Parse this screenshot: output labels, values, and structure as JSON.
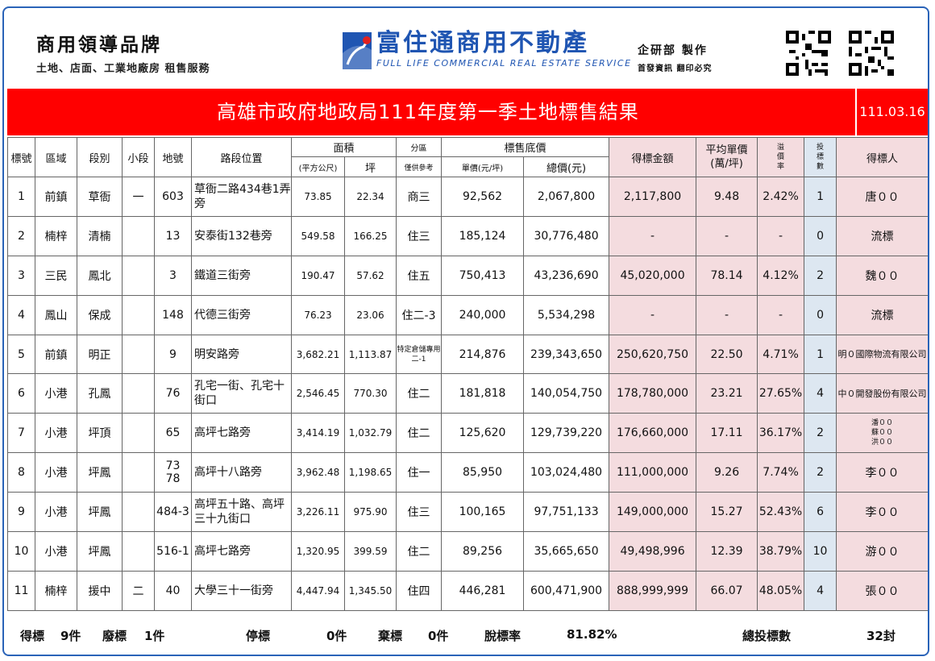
{
  "header": {
    "brand_title": "商用領導品牌",
    "brand_sub": "土地、店面、工業地廠房 租售服務",
    "company_cn": "富住通商用不動產",
    "company_en": "FULL LIFE COMMERCIAL REAL ESTATE SERVICE",
    "dept_line1": "企研部 製作",
    "dept_line2": "首發資訊 翻印必究",
    "brand_color": "#1f55b2"
  },
  "title": "高雄市政府地政局111年度第一季土地標售結果",
  "date": "111.03.16",
  "columns": {
    "no": "標號",
    "district": "區域",
    "section": "段別",
    "subsection": "小段",
    "lot": "地號",
    "road": "路段位置",
    "area": "面積",
    "area_m2": "(平方公尺)",
    "area_ping": "坪",
    "zone": "分區",
    "zone_note": "僅供參考",
    "base_price": "標售底價",
    "unit_price": "單價(元/坪)",
    "total_price": "總價(元)",
    "winning_amount": "得標金額",
    "avg_unit": "平均單價",
    "avg_unit_unit": "(萬/坪)",
    "premium_1": "溢",
    "premium_2": "價",
    "premium_3": "率",
    "bids_1": "投",
    "bids_2": "標",
    "bids_3": "數",
    "winner": "得標人"
  },
  "rows": [
    {
      "no": "1",
      "district": "前鎮",
      "section": "草衙",
      "sub": "一",
      "lot": "603",
      "road": "草衙二路434巷1弄旁",
      "m2": "73.85",
      "ping": "22.34",
      "zone": "商三",
      "unit": "92,562",
      "total": "2,067,800",
      "win": "2,117,800",
      "avg": "9.48",
      "prem": "2.42%",
      "bids": "1",
      "winner": "唐００"
    },
    {
      "no": "2",
      "district": "楠梓",
      "section": "清楠",
      "sub": "",
      "lot": "13",
      "road": "安泰街132巷旁",
      "m2": "549.58",
      "ping": "166.25",
      "zone": "住三",
      "unit": "185,124",
      "total": "30,776,480",
      "win": "-",
      "avg": "-",
      "prem": "-",
      "bids": "0",
      "winner": "流標"
    },
    {
      "no": "3",
      "district": "三民",
      "section": "鳳北",
      "sub": "",
      "lot": "3",
      "road": "鐵道三街旁",
      "m2": "190.47",
      "ping": "57.62",
      "zone": "住五",
      "unit": "750,413",
      "total": "43,236,690",
      "win": "45,020,000",
      "avg": "78.14",
      "prem": "4.12%",
      "bids": "2",
      "winner": "魏００"
    },
    {
      "no": "4",
      "district": "鳳山",
      "section": "保成",
      "sub": "",
      "lot": "148",
      "road": "代德三街旁",
      "m2": "76.23",
      "ping": "23.06",
      "zone": "住二-3",
      "unit": "240,000",
      "total": "5,534,298",
      "win": "-",
      "avg": "-",
      "prem": "-",
      "bids": "0",
      "winner": "流標"
    },
    {
      "no": "5",
      "district": "前鎮",
      "section": "明正",
      "sub": "",
      "lot": "9",
      "road": "明安路旁",
      "m2": "3,682.21",
      "ping": "1,113.87",
      "zone": "特定倉儲專用二-1",
      "unit": "214,876",
      "total": "239,343,650",
      "win": "250,620,750",
      "avg": "22.50",
      "prem": "4.71%",
      "bids": "1",
      "winner": "明０國際物流有限公司"
    },
    {
      "no": "6",
      "district": "小港",
      "section": "孔鳳",
      "sub": "",
      "lot": "76",
      "road": "孔宅一街、孔宅十街口",
      "m2": "2,546.45",
      "ping": "770.30",
      "zone": "住二",
      "unit": "181,818",
      "total": "140,054,750",
      "win": "178,780,000",
      "avg": "23.21",
      "prem": "27.65%",
      "bids": "4",
      "winner": "中０開發股份有限公司"
    },
    {
      "no": "7",
      "district": "小港",
      "section": "坪頂",
      "sub": "",
      "lot": "65",
      "road": "高坪七路旁",
      "m2": "3,414.19",
      "ping": "1,032.79",
      "zone": "住二",
      "unit": "125,620",
      "total": "129,739,220",
      "win": "176,660,000",
      "avg": "17.11",
      "prem": "36.17%",
      "bids": "2",
      "winner": "潘００ 蘇００ 洪００"
    },
    {
      "no": "8",
      "district": "小港",
      "section": "坪鳳",
      "sub": "",
      "lot": "73 78",
      "road": "高坪十八路旁",
      "m2": "3,962.48",
      "ping": "1,198.65",
      "zone": "住一",
      "unit": "85,950",
      "total": "103,024,480",
      "win": "111,000,000",
      "avg": "9.26",
      "prem": "7.74%",
      "bids": "2",
      "winner": "李００"
    },
    {
      "no": "9",
      "district": "小港",
      "section": "坪鳳",
      "sub": "",
      "lot": "484-3",
      "road": "高坪五十路、高坪三十九街口",
      "m2": "3,226.11",
      "ping": "975.90",
      "zone": "住三",
      "unit": "100,165",
      "total": "97,751,133",
      "win": "149,000,000",
      "avg": "15.27",
      "prem": "52.43%",
      "bids": "6",
      "winner": "李００"
    },
    {
      "no": "10",
      "district": "小港",
      "section": "坪鳳",
      "sub": "",
      "lot": "516-1",
      "road": "高坪七路旁",
      "m2": "1,320.95",
      "ping": "399.59",
      "zone": "住二",
      "unit": "89,256",
      "total": "35,665,650",
      "win": "49,498,996",
      "avg": "12.39",
      "prem": "38.79%",
      "bids": "10",
      "winner": "游００"
    },
    {
      "no": "11",
      "district": "楠梓",
      "section": "援中",
      "sub": "二",
      "lot": "40",
      "road": "大學三十一街旁",
      "m2": "4,447.94",
      "ping": "1,345.50",
      "zone": "住四",
      "unit": "446,281",
      "total": "600,471,900",
      "win": "888,999,999",
      "avg": "66.07",
      "prem": "48.05%",
      "bids": "4",
      "winner": "張００"
    }
  ],
  "footer": {
    "won_label": "得標",
    "won_value": "9件",
    "void_label": "廢標",
    "void_value": "1件",
    "stop_label": "停標",
    "stop_value": "0件",
    "abandon_label": "棄標",
    "abandon_value": "0件",
    "rate_label": "脫標率",
    "rate_value": "81.82%",
    "total_bids_label": "總投標數",
    "total_bids_value": "32封"
  },
  "colors": {
    "title_bar": "#ff0000",
    "pink_cells": "#f4dcdf",
    "blue_cells": "#dde7f1",
    "frame": "#2a63b8"
  }
}
